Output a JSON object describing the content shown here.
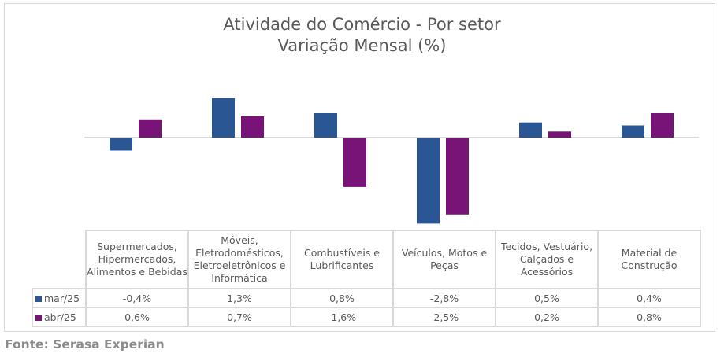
{
  "chart_data": {
    "type": "bar",
    "title": "Atividade do Comércio - Por setor",
    "subtitle": "Variação Mensal (%)",
    "xlabel": "",
    "ylabel": "",
    "ylim": [
      -2.8,
      1.3
    ],
    "grid": false,
    "legend": "data-table-left",
    "categories": [
      [
        "Supermercados,",
        "Hipermercados,",
        "Alimentos e Bebidas"
      ],
      [
        "Móveis,",
        "Eletrodomésticos,",
        "Eletroeletrônicos e",
        "Informática"
      ],
      [
        "Combustíveis e",
        "Lubrificantes"
      ],
      [
        "Veículos, Motos e",
        "Peças"
      ],
      [
        "Tecidos, Vestuário,",
        "Calçados e",
        "Acessórios"
      ],
      [
        "Material de",
        "Construção"
      ]
    ],
    "series": [
      {
        "name": "mar/25",
        "color": "#2a5694",
        "values": [
          -0.4,
          1.3,
          0.8,
          -2.8,
          0.5,
          0.4
        ],
        "labels": [
          "-0,4%",
          "1,3%",
          "0,8%",
          "-2,8%",
          "0,5%",
          "0,4%"
        ]
      },
      {
        "name": "abr/25",
        "color": "#781378",
        "values": [
          0.6,
          0.7,
          -1.6,
          -2.5,
          0.2,
          0.8
        ],
        "labels": [
          "0,6%",
          "0,7%",
          "-1,6%",
          "-2,5%",
          "0,2%",
          "0,8%"
        ]
      }
    ]
  },
  "source": "Fonte: Serasa Experian"
}
